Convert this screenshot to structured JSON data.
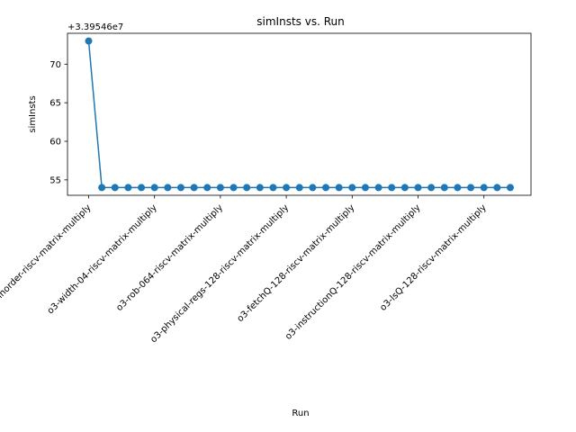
{
  "chart_data": {
    "type": "line",
    "title": "simInsts vs. Run",
    "xlabel": "Run",
    "ylabel": "simInsts",
    "offset_text": "+3.39546e7",
    "series_color": "#1f77b4",
    "grid": false,
    "ylim": [
      53,
      74
    ],
    "yticks": [
      55,
      60,
      65,
      70
    ],
    "x_tick_labels": [
      "inorder-riscv-matrix-multiply",
      "o3-width-04-riscv-matrix-multiply",
      "o3-rob-064-riscv-matrix-multiply",
      "o3-physical-regs-128-riscv-matrix-multiply",
      "o3-fetchQ-128-riscv-matrix-multiply",
      "o3-instructionQ-128-riscv-matrix-multiply",
      "o3-lsQ-128-riscv-matrix-multiply"
    ],
    "x_tick_positions": [
      0,
      5,
      10,
      15,
      20,
      25,
      30
    ],
    "series": [
      {
        "values": [
          73,
          54,
          54,
          54,
          54,
          54,
          54,
          54,
          54,
          54,
          54,
          54,
          54,
          54,
          54,
          54,
          54,
          54,
          54,
          54,
          54,
          54,
          54,
          54,
          54,
          54,
          54,
          54,
          54,
          54,
          54,
          54,
          54
        ]
      }
    ]
  }
}
